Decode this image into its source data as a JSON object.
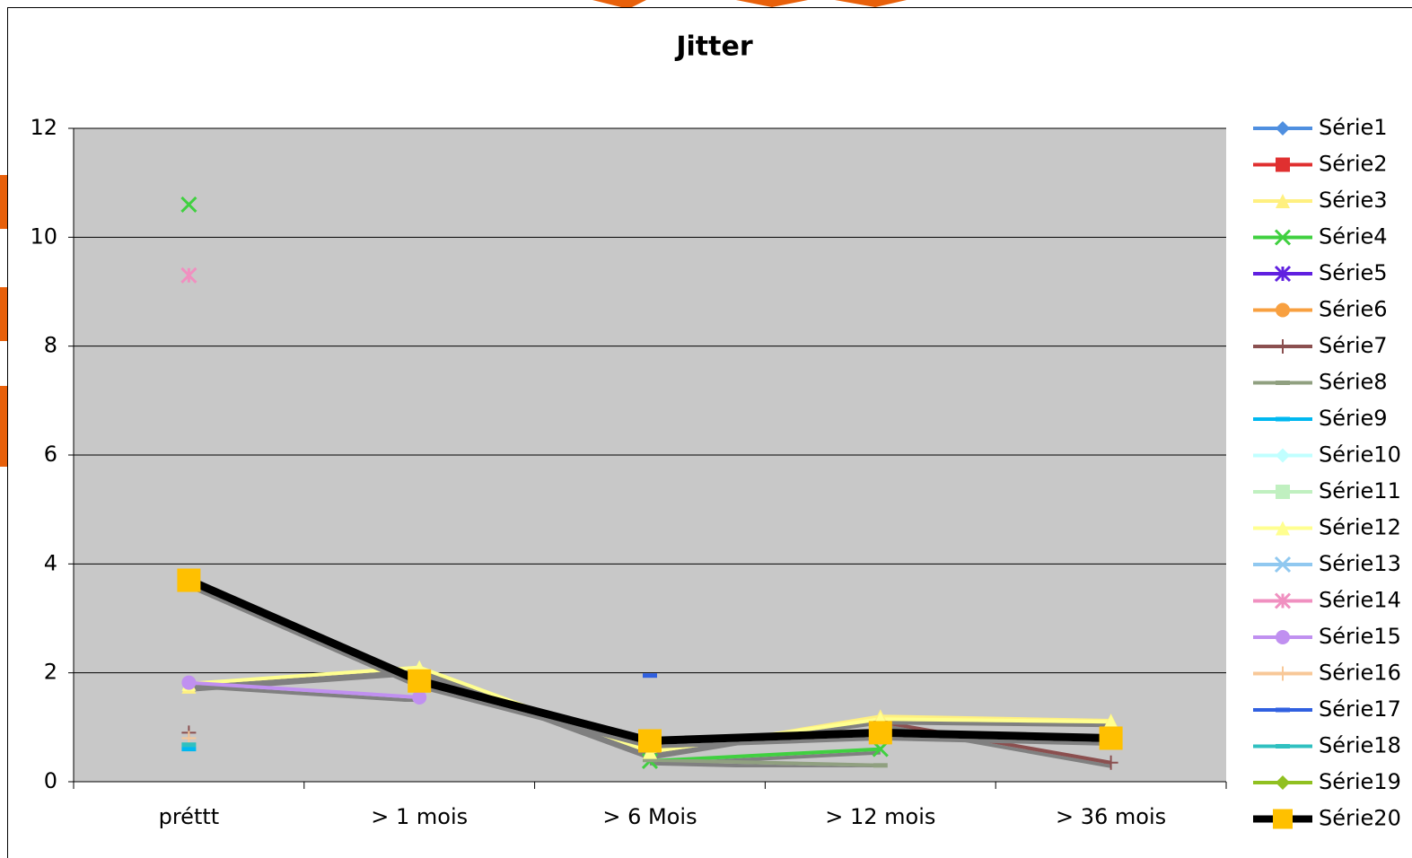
{
  "chart_data": {
    "type": "line",
    "title": "Jitter",
    "categories": [
      "préttt",
      "> 1 mois",
      "> 6 Mois",
      "> 12 mois",
      "> 36 mois"
    ],
    "ylim": [
      0,
      12
    ],
    "yticks": [
      0,
      2,
      4,
      6,
      8,
      10,
      12
    ],
    "grid": true,
    "legend": "right",
    "series": [
      {
        "name": "Série1",
        "color": "#4f8fe0",
        "marker": "diamond",
        "values": [
          null,
          null,
          null,
          null,
          null
        ]
      },
      {
        "name": "Série2",
        "color": "#e03030",
        "marker": "square",
        "values": [
          null,
          null,
          null,
          null,
          null
        ]
      },
      {
        "name": "Série3",
        "color": "#fff080",
        "marker": "triangle",
        "values": [
          1.75,
          2.05,
          0.5,
          1.2,
          1.12
        ]
      },
      {
        "name": "Série4",
        "color": "#40d040",
        "marker": "x",
        "values": [
          10.6,
          null,
          0.38,
          0.6,
          null
        ]
      },
      {
        "name": "Série5",
        "color": "#6020e0",
        "marker": "asterisk",
        "values": [
          null,
          null,
          null,
          null,
          null
        ]
      },
      {
        "name": "Série6",
        "color": "#f8a040",
        "marker": "circle",
        "values": [
          null,
          null,
          null,
          null,
          null
        ]
      },
      {
        "name": "Série7",
        "color": "#8b5050",
        "marker": "plus",
        "values": [
          0.9,
          null,
          null,
          1.1,
          0.35
        ]
      },
      {
        "name": "Série8",
        "color": "#90a080",
        "marker": "dash",
        "values": [
          null,
          null,
          0.4,
          0.3,
          null
        ]
      },
      {
        "name": "Série9",
        "color": "#00b8f0",
        "marker": "dash",
        "values": [
          0.6,
          null,
          null,
          null,
          null
        ]
      },
      {
        "name": "Série10",
        "color": "#c0ffff",
        "marker": "diamond",
        "values": [
          null,
          null,
          null,
          null,
          null
        ]
      },
      {
        "name": "Série11",
        "color": "#c0f0c0",
        "marker": "square",
        "values": [
          null,
          null,
          null,
          null,
          null
        ]
      },
      {
        "name": "Série12",
        "color": "#ffff90",
        "marker": "triangle",
        "values": [
          1.8,
          2.1,
          0.55,
          1.15,
          1.1
        ]
      },
      {
        "name": "Série13",
        "color": "#90c8f0",
        "marker": "x",
        "values": [
          null,
          null,
          null,
          null,
          null
        ]
      },
      {
        "name": "Série14",
        "color": "#f090c0",
        "marker": "asterisk",
        "values": [
          9.3,
          null,
          null,
          null,
          null
        ]
      },
      {
        "name": "Série15",
        "color": "#c090f0",
        "marker": "circle",
        "values": [
          1.82,
          1.55,
          null,
          null,
          null
        ]
      },
      {
        "name": "Série16",
        "color": "#f8c898",
        "marker": "plus",
        "values": [
          0.8,
          null,
          null,
          null,
          null
        ]
      },
      {
        "name": "Série17",
        "color": "#3060e0",
        "marker": "dash",
        "values": [
          null,
          null,
          1.95,
          null,
          null
        ]
      },
      {
        "name": "Série18",
        "color": "#30c0c0",
        "marker": "dash",
        "values": [
          0.68,
          null,
          null,
          null,
          null
        ]
      },
      {
        "name": "Série19",
        "color": "#90c020",
        "marker": "diamond",
        "values": [
          null,
          null,
          null,
          null,
          null
        ]
      },
      {
        "name": "Série20",
        "color": "#000000",
        "marker": "square",
        "marker_color": "#ffc000",
        "values": [
          3.7,
          1.85,
          0.75,
          0.9,
          0.8
        ]
      }
    ]
  }
}
